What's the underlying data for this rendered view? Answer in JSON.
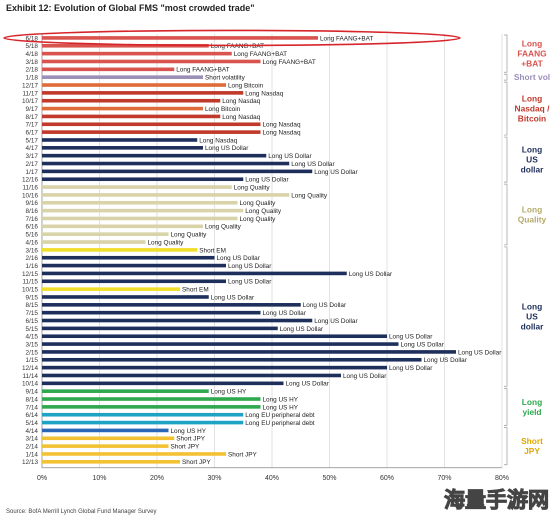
{
  "title": "Exhibit 12: Evolution of Global FMS \"most crowded trade\"",
  "source": "Source: BofA Merrill Lynch Global Fund Manager Survey",
  "watermark": "海量手游网",
  "chart_data": {
    "type": "bar",
    "orientation": "horizontal",
    "xlim": [
      0,
      80
    ],
    "x_ticks": [
      "0%",
      "10%",
      "20%",
      "30%",
      "40%",
      "50%",
      "60%",
      "70%",
      "80%"
    ],
    "grid": true,
    "highlight": "6/18 row circled in red",
    "rows": [
      {
        "date": "6/18",
        "value": 48,
        "label": "Long FAANG+BAT",
        "group": "faang"
      },
      {
        "date": "5/18",
        "value": 29,
        "label": "Long FAANG+BAT",
        "group": "faang"
      },
      {
        "date": "4/18",
        "value": 33,
        "label": "Long FAANG+BAT",
        "group": "faang"
      },
      {
        "date": "3/18",
        "value": 38,
        "label": "Long FAANG+BAT",
        "group": "faang"
      },
      {
        "date": "2/18",
        "value": 23,
        "label": "Long FAANG+BAT",
        "group": "faang"
      },
      {
        "date": "1/18",
        "value": 28,
        "label": "Short volatility",
        "group": "vol"
      },
      {
        "date": "12/17",
        "value": 32,
        "label": "Long Bitcoin",
        "group": "nasdaq"
      },
      {
        "date": "11/17",
        "value": 35,
        "label": "Long Nasdaq",
        "group": "nasdaq"
      },
      {
        "date": "10/17",
        "value": 31,
        "label": "Long Nasdaq",
        "group": "nasdaq"
      },
      {
        "date": "9/17",
        "value": 28,
        "label": "Long Bitcoin",
        "group": "nasdaq"
      },
      {
        "date": "8/17",
        "value": 31,
        "label": "Long Nasdaq",
        "group": "nasdaq"
      },
      {
        "date": "7/17",
        "value": 38,
        "label": "Long Nasdaq",
        "group": "nasdaq"
      },
      {
        "date": "6/17",
        "value": 38,
        "label": "Long Nasdaq",
        "group": "nasdaq"
      },
      {
        "date": "5/17",
        "value": 27,
        "label": "Long Nasdaq",
        "group": "usd1"
      },
      {
        "date": "4/17",
        "value": 28,
        "label": "Long US Dollar",
        "group": "usd1"
      },
      {
        "date": "3/17",
        "value": 39,
        "label": "Long US Dollar",
        "group": "usd1"
      },
      {
        "date": "2/17",
        "value": 43,
        "label": "Long US Dollar",
        "group": "usd1"
      },
      {
        "date": "1/17",
        "value": 47,
        "label": "Long US Dollar",
        "group": "usd1"
      },
      {
        "date": "12/16",
        "value": 35,
        "label": "Long US Dollar",
        "group": "usd1"
      },
      {
        "date": "11/16",
        "value": 33,
        "label": "Long Quality",
        "group": "quality"
      },
      {
        "date": "10/16",
        "value": 43,
        "label": "Long Quality",
        "group": "quality"
      },
      {
        "date": "9/16",
        "value": 34,
        "label": "Long Quality",
        "group": "quality"
      },
      {
        "date": "8/16",
        "value": 35,
        "label": "Long Quality",
        "group": "quality"
      },
      {
        "date": "7/16",
        "value": 34,
        "label": "Long Quality",
        "group": "quality"
      },
      {
        "date": "6/16",
        "value": 28,
        "label": "Long Quality",
        "group": "quality"
      },
      {
        "date": "5/16",
        "value": 22,
        "label": "Long Quality",
        "group": "quality"
      },
      {
        "date": "4/16",
        "value": 18,
        "label": "Long Quality",
        "group": "quality"
      },
      {
        "date": "3/16",
        "value": 27,
        "label": "Short EM",
        "group": "em"
      },
      {
        "date": "2/16",
        "value": 30,
        "label": "Long US Dollar",
        "group": "usd2"
      },
      {
        "date": "1/16",
        "value": 32,
        "label": "Long US Dollar",
        "group": "usd2"
      },
      {
        "date": "12/15",
        "value": 53,
        "label": "Long US Dollar",
        "group": "usd2"
      },
      {
        "date": "11/15",
        "value": 32,
        "label": "Long US Dollar",
        "group": "usd2"
      },
      {
        "date": "10/15",
        "value": 24,
        "label": "Short EM",
        "group": "em"
      },
      {
        "date": "9/15",
        "value": 29,
        "label": "Long US Dollar",
        "group": "usd2"
      },
      {
        "date": "8/15",
        "value": 45,
        "label": "Long US Dollar",
        "group": "usd2"
      },
      {
        "date": "7/15",
        "value": 38,
        "label": "Long US Dollar",
        "group": "usd2"
      },
      {
        "date": "6/15",
        "value": 47,
        "label": "Long US Dollar",
        "group": "usd2"
      },
      {
        "date": "5/15",
        "value": 41,
        "label": "Long US Dollar",
        "group": "usd2"
      },
      {
        "date": "4/15",
        "value": 60,
        "label": "Long US Dollar",
        "group": "usd2"
      },
      {
        "date": "3/15",
        "value": 62,
        "label": "Long US Dollar",
        "group": "usd2"
      },
      {
        "date": "2/15",
        "value": 72,
        "label": "Long US Dollar",
        "group": "usd2"
      },
      {
        "date": "1/15",
        "value": 66,
        "label": "Long US Dollar",
        "group": "usd2"
      },
      {
        "date": "12/14",
        "value": 60,
        "label": "Long US Dollar",
        "group": "usd2"
      },
      {
        "date": "11/14",
        "value": 52,
        "label": "Long US Dollar",
        "group": "usd2"
      },
      {
        "date": "10/14",
        "value": 42,
        "label": "Long US Dollar",
        "group": "usd2"
      },
      {
        "date": "9/14",
        "value": 29,
        "label": "Long US HY",
        "group": "yield"
      },
      {
        "date": "8/14",
        "value": 38,
        "label": "Long US HY",
        "group": "yield"
      },
      {
        "date": "7/14",
        "value": 38,
        "label": "Long US HY",
        "group": "yield"
      },
      {
        "date": "6/14",
        "value": 35,
        "label": "Long EU peripheral debt",
        "group": "yield"
      },
      {
        "date": "5/14",
        "value": 35,
        "label": "Long EU peripheral debt",
        "group": "yield"
      },
      {
        "date": "4/14",
        "value": 22,
        "label": "Long US HY",
        "group": "jpy"
      },
      {
        "date": "3/14",
        "value": 23,
        "label": "Short JPY",
        "group": "jpy"
      },
      {
        "date": "2/14",
        "value": 22,
        "label": "Short JPY",
        "group": "jpy"
      },
      {
        "date": "1/14",
        "value": 32,
        "label": "Short JPY",
        "group": "jpy"
      },
      {
        "date": "12/13",
        "value": 24,
        "label": "Short JPY",
        "group": "jpy"
      }
    ],
    "groups": {
      "faang": {
        "color": "#d9534f",
        "bracket_label": "Long FAANG +BAT"
      },
      "vol": {
        "color": "#9b8fb8",
        "bracket_label": "Short vol"
      },
      "nasdaq": {
        "color": "#c0392b",
        "bracket_label": "Long Nasdaq / Bitcoin"
      },
      "usd1": {
        "color": "#1f2f5c",
        "bracket_label": "Long US dollar"
      },
      "quality": {
        "color": "#d8d3a8",
        "bracket_label": "Long Quality"
      },
      "em": {
        "color": "#f1de2b",
        "bracket_label": ""
      },
      "usd2": {
        "color": "#1f2f5c",
        "bracket_label": "Long US dollar"
      },
      "yield": {
        "color": "#2fa84f",
        "bracket_label": "Long yield"
      },
      "jpy": {
        "color": "#f2c233",
        "bracket_label": "Short JPY"
      }
    },
    "group_overrides": {
      "12/17": "#e06b3a",
      "9/17": "#e06b3a",
      "6/14": "#1fa3c4",
      "5/14": "#1fa3c4",
      "4/14": "#2a66b5",
      "10/15": "#f1de2b",
      "3/16": "#f1de2b",
      "1/18": "#9b8fb8"
    },
    "brackets": [
      {
        "from": "6/18",
        "to": "2/18",
        "lines": [
          "Long",
          "FAANG",
          "+BAT"
        ],
        "color": "#d9534f"
      },
      {
        "from": "1/18",
        "to": "1/18",
        "lines": [
          "Short vol"
        ],
        "color": "#9b8fb8"
      },
      {
        "from": "12/17",
        "to": "6/17",
        "lines": [
          "Long",
          "Nasdaq /",
          "Bitcoin"
        ],
        "color": "#c0392b"
      },
      {
        "from": "5/17",
        "to": "12/16",
        "lines": [
          "Long",
          "US",
          "dollar"
        ],
        "color": "#1f2f5c"
      },
      {
        "from": "11/16",
        "to": "4/16",
        "lines": [
          "Long",
          "Quality"
        ],
        "color": "#b5aa6a"
      },
      {
        "from": "3/16",
        "to": "10/14",
        "lines": [
          "Long",
          "US",
          "dollar"
        ],
        "color": "#1f2f5c"
      },
      {
        "from": "9/14",
        "to": "5/14",
        "lines": [
          "Long",
          "yield"
        ],
        "color": "#2fa84f"
      },
      {
        "from": "4/14",
        "to": "12/13",
        "lines": [
          "Short",
          "JPY"
        ],
        "color": "#e0a800"
      }
    ]
  }
}
